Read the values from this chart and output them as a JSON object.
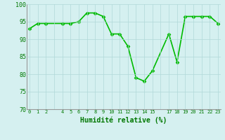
{
  "x": [
    0,
    1,
    2,
    4,
    5,
    6,
    7,
    8,
    9,
    10,
    11,
    12,
    13,
    14,
    15,
    17,
    18,
    19,
    20,
    21,
    22,
    23
  ],
  "y": [
    93.0,
    94.5,
    94.5,
    94.5,
    94.5,
    95.0,
    97.5,
    97.5,
    96.5,
    91.5,
    91.5,
    88.0,
    79.0,
    78.0,
    81.0,
    91.5,
    83.5,
    96.5,
    96.5,
    96.5,
    96.5,
    94.5
  ],
  "line_color": "#00bb00",
  "marker": "D",
  "marker_size": 2.5,
  "bg_color": "#d5f0f0",
  "grid_color": "#b0d8d8",
  "xlabel": "Humidité relative (%)",
  "xlabel_color": "#007700",
  "tick_color": "#007700",
  "ylim": [
    70,
    100
  ],
  "xlim": [
    -0.3,
    23.3
  ],
  "yticks": [
    70,
    75,
    80,
    85,
    90,
    95,
    100
  ],
  "xtick_labels": [
    "0",
    "1",
    "2",
    "",
    "4",
    "5",
    "6",
    "7",
    "8",
    "9",
    "10",
    "11",
    "12",
    "13",
    "14",
    "15",
    "",
    "17",
    "18",
    "19",
    "20",
    "21",
    "22",
    "23"
  ],
  "line_width": 1.2
}
